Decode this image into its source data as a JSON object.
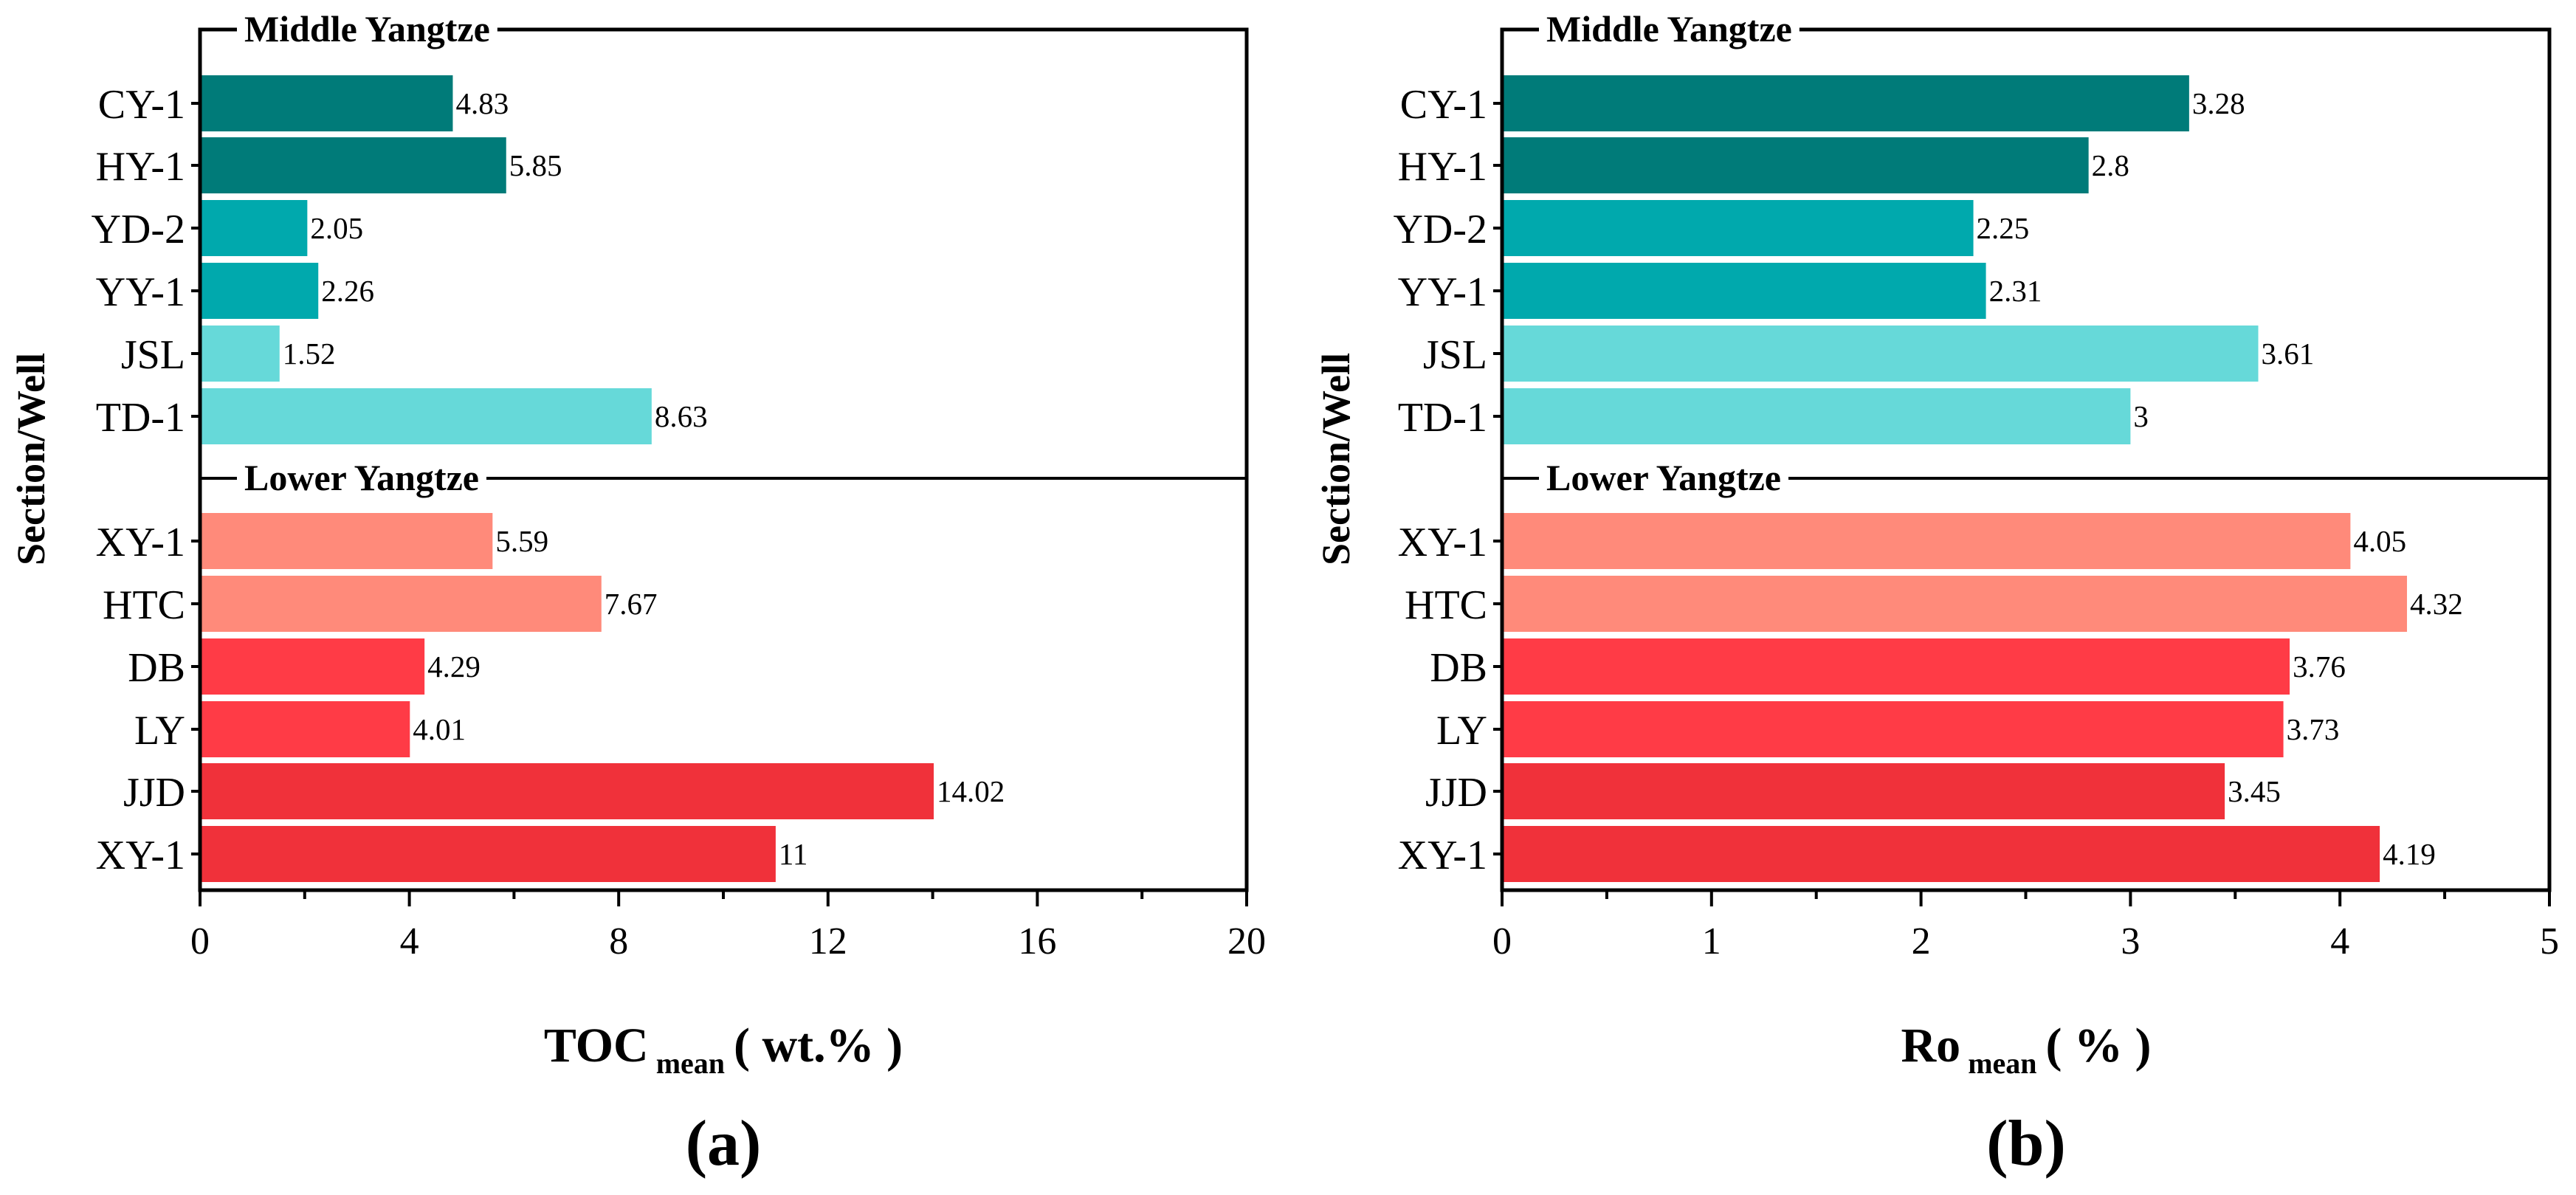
{
  "chart_data": [
    {
      "type": "bar",
      "orientation": "horizontal",
      "panel_label": "(a)",
      "xlabel": "TOC",
      "xlabel_sub": "mean",
      "xlabel_unit": "( wt.% )",
      "ylabel": "Section/Well",
      "xlim": [
        0,
        20
      ],
      "xticks": [
        0,
        4,
        8,
        12,
        16,
        20
      ],
      "groups": [
        {
          "name": "Middle Yangtze",
          "bars": [
            {
              "label": "CY-1",
              "value": 4.83,
              "value_label": "4.83",
              "color": "#007B79"
            },
            {
              "label": "HY-1",
              "value": 5.85,
              "value_label": "5.85",
              "color": "#007B79"
            },
            {
              "label": "YD-2",
              "value": 2.05,
              "value_label": "2.05",
              "color": "#00A9AD"
            },
            {
              "label": "YY-1",
              "value": 2.26,
              "value_label": "2.26",
              "color": "#00A9AD"
            },
            {
              "label": "JSL",
              "value": 1.52,
              "value_label": "1.52",
              "color": "#66D9D9"
            },
            {
              "label": "TD-1",
              "value": 8.63,
              "value_label": "8.63",
              "color": "#66D9D9"
            }
          ]
        },
        {
          "name": "Lower Yangtze",
          "bars": [
            {
              "label": "XY-1",
              "value": 5.59,
              "value_label": "5.59",
              "color": "#FF8A7A"
            },
            {
              "label": "HTC",
              "value": 7.67,
              "value_label": "7.67",
              "color": "#FF8A7A"
            },
            {
              "label": "DB",
              "value": 4.29,
              "value_label": "4.29",
              "color": "#FF3B46"
            },
            {
              "label": "LY",
              "value": 4.01,
              "value_label": "4.01",
              "color": "#FF3B46"
            },
            {
              "label": "JJD",
              "value": 14.02,
              "value_label": "14.02",
              "color": "#F0313A"
            },
            {
              "label": "XY-1",
              "value": 11,
              "value_label": "11",
              "color": "#F0313A"
            }
          ]
        }
      ]
    },
    {
      "type": "bar",
      "orientation": "horizontal",
      "panel_label": "(b)",
      "xlabel": "Ro",
      "xlabel_sub": "mean",
      "xlabel_unit": "( % )",
      "ylabel": "Section/Well",
      "xlim": [
        0,
        5
      ],
      "xticks": [
        0,
        1,
        2,
        3,
        4,
        5
      ],
      "groups": [
        {
          "name": "Middle Yangtze",
          "bars": [
            {
              "label": "CY-1",
              "value": 3.28,
              "value_label": "3.28",
              "color": "#007B79"
            },
            {
              "label": "HY-1",
              "value": 2.8,
              "value_label": "2.8",
              "color": "#007B79"
            },
            {
              "label": "YD-2",
              "value": 2.25,
              "value_label": "2.25",
              "color": "#00A9AD"
            },
            {
              "label": "YY-1",
              "value": 2.31,
              "value_label": "2.31",
              "color": "#00A9AD"
            },
            {
              "label": "JSL",
              "value": 3.61,
              "value_label": "3.61",
              "color": "#66D9D9"
            },
            {
              "label": "TD-1",
              "value": 3,
              "value_label": "3",
              "color": "#66D9D9"
            }
          ]
        },
        {
          "name": "Lower Yangtze",
          "bars": [
            {
              "label": "XY-1",
              "value": 4.05,
              "value_label": "4.05",
              "color": "#FF8A7A"
            },
            {
              "label": "HTC",
              "value": 4.32,
              "value_label": "4.32",
              "color": "#FF8A7A"
            },
            {
              "label": "DB",
              "value": 3.76,
              "value_label": "3.76",
              "color": "#FF3B46"
            },
            {
              "label": "LY",
              "value": 3.73,
              "value_label": "3.73",
              "color": "#FF3B46"
            },
            {
              "label": "JJD",
              "value": 3.45,
              "value_label": "3.45",
              "color": "#F0313A"
            },
            {
              "label": "XY-1",
              "value": 4.19,
              "value_label": "4.19",
              "color": "#F0313A"
            }
          ]
        }
      ]
    }
  ]
}
